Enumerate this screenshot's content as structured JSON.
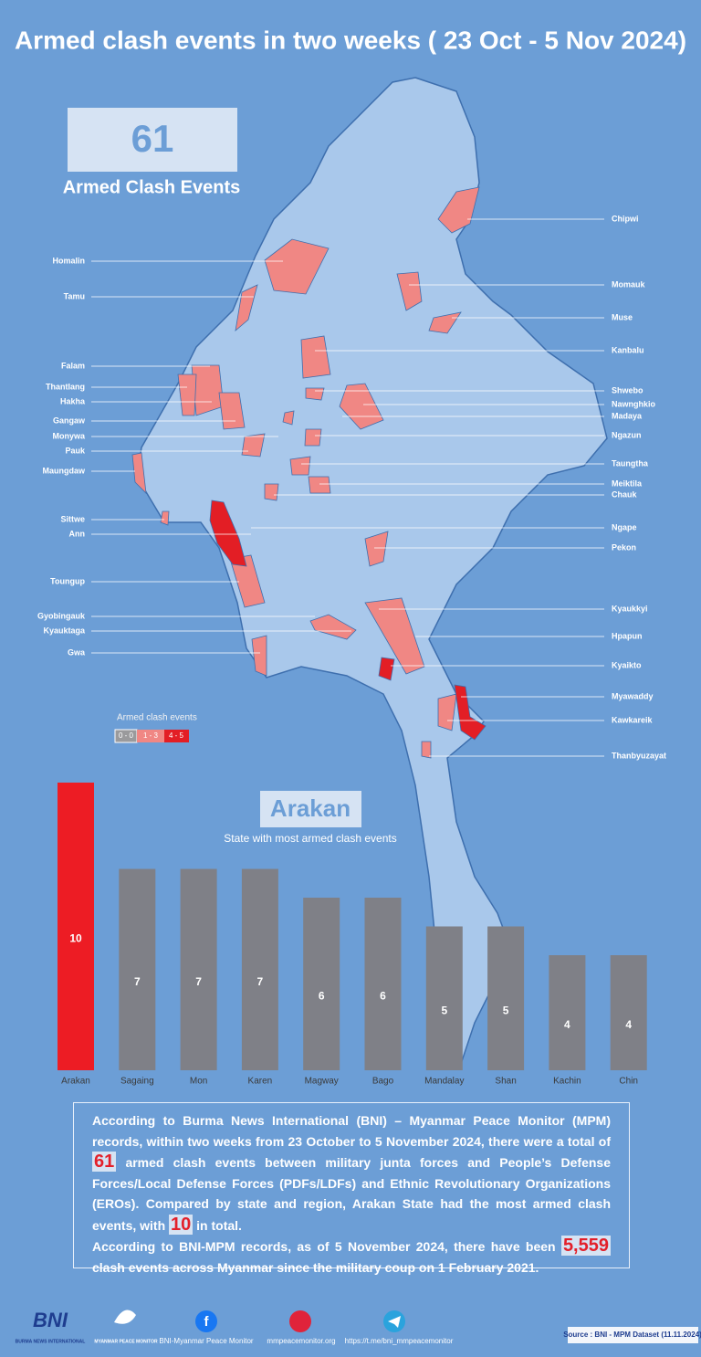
{
  "header": {
    "title": "Armed clash events in two weeks ( 23 Oct - 5 Nov 2024)"
  },
  "summary": {
    "count": "61",
    "label": "Armed Clash Events"
  },
  "map": {
    "labels_left": [
      "Homalin",
      "Tamu",
      "Falam",
      "Thantlang",
      "Hakha",
      "Gangaw",
      "Monywa",
      "Pauk",
      "Maungdaw",
      "Sittwe",
      "Ann",
      "Toungup",
      "Gyobingauk",
      "Kyauktaga",
      "Gwa"
    ],
    "labels_right": [
      "Chipwi",
      "Momauk",
      "Muse",
      "Kanbalu",
      "Shwebo",
      "Nawnghkio",
      "Madaya",
      "Ngazun",
      "Taungtha",
      "Meiktila",
      "Chauk",
      "Ngape",
      "Pekon",
      "Kyaukkyi",
      "Hpapun",
      "Kyaikto",
      "Myawaddy",
      "Kawkareik",
      "Thanbyuzayat"
    ],
    "legend": {
      "title": "Armed clash events",
      "items": [
        "0 - 0",
        "1 - 3",
        "4 - 5"
      ]
    }
  },
  "highlight": {
    "state": "Arakan",
    "caption": "State with most armed clash events"
  },
  "chart_data": {
    "type": "bar",
    "categories": [
      "Arakan",
      "Sagaing",
      "Mon",
      "Karen",
      "Magway",
      "Bago",
      "Mandalay",
      "Shan",
      "Kachin",
      "Chin"
    ],
    "values": [
      10,
      7,
      7,
      7,
      6,
      6,
      5,
      5,
      4,
      4
    ],
    "colors": [
      "#ed1c24",
      "#7f8087",
      "#7f8087",
      "#7f8087",
      "#7f8087",
      "#7f8087",
      "#7f8087",
      "#7f8087",
      "#7f8087",
      "#7f8087"
    ]
  },
  "body": {
    "paragraphs": [
      [
        "According to Burma News International (BNI) – Myanmar Peace Monitor (MPM) records, within two weeks from 23 October to 5 November 2024, there were a total of",
        "61",
        "armed clash events between military junta forces and People’s Defense Forces/Local Defense Forces (PDFs/LDFs) and Ethnic Revolutionary Organizations (EROs). Compared by state and region, Arakan State had the most armed clash events, with",
        "10",
        "in total."
      ],
      [
        "According to BNI-MPM records, as of 5 November 2024, there have been",
        "5,559",
        "clash events across Myanmar since the military coup on 1 February 2021."
      ]
    ]
  },
  "footer": {
    "bni_logo": "BNI",
    "bni_name": "BURMA NEWS INTERNATIONAL",
    "mpm_name": "MYANMAR PEACE MONITOR",
    "facebook": "BNI-Myanmar Peace Monitor",
    "website": "mmpeacemonitor.org",
    "telegram": "https://t.me/bni_mmpeacemonitor",
    "source": "Source : BNI - MPM Dataset (11.11.2024)"
  }
}
